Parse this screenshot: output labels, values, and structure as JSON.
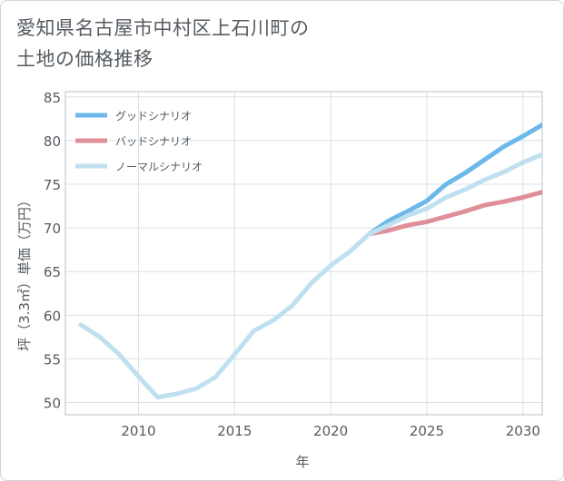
{
  "chart_data": {
    "type": "line",
    "title_line1": "愛知県名古屋市中村区上石川町の",
    "title_line2": "土地の価格推移",
    "xlabel": "年",
    "ylabel": "坪（3.3㎡）単価（万円）",
    "xlim": [
      2006.2,
      2031
    ],
    "ylim": [
      48.6,
      85.6
    ],
    "xticks": [
      2010,
      2015,
      2020,
      2025,
      2030
    ],
    "yticks": [
      50,
      55,
      60,
      65,
      70,
      75,
      80,
      85
    ],
    "grid": true,
    "legend_position": "top-left",
    "series": [
      {
        "name": "グッドシナリオ",
        "color": "#6cb8ea",
        "x": [
          2022,
          2023,
          2024,
          2025,
          2026,
          2027,
          2028,
          2029,
          2030,
          2031
        ],
        "y": [
          69.3,
          70.8,
          71.9,
          73.1,
          75.0,
          76.3,
          77.8,
          79.3,
          80.5,
          81.8
        ]
      },
      {
        "name": "バッドシナリオ",
        "color": "#e08e97",
        "x": [
          2022,
          2023,
          2024,
          2025,
          2026,
          2027,
          2028,
          2029,
          2030,
          2031
        ],
        "y": [
          69.3,
          69.7,
          70.3,
          70.7,
          71.3,
          71.9,
          72.6,
          73.0,
          73.5,
          74.1
        ]
      },
      {
        "name": "ノーマルシナリオ",
        "color": "#bfe0ef",
        "x": [
          2007,
          2008,
          2009,
          2010,
          2011,
          2012,
          2013,
          2014,
          2015,
          2016,
          2017,
          2018,
          2019,
          2020,
          2021,
          2022,
          2023,
          2024,
          2025,
          2026,
          2027,
          2028,
          2029,
          2030,
          2031
        ],
        "y": [
          58.9,
          57.5,
          55.5,
          53.0,
          50.6,
          51.0,
          51.6,
          52.9,
          55.5,
          58.2,
          59.4,
          61.1,
          63.7,
          65.7,
          67.3,
          69.3,
          70.3,
          71.4,
          72.2,
          73.5,
          74.4,
          75.5,
          76.4,
          77.5,
          78.4
        ]
      }
    ]
  }
}
